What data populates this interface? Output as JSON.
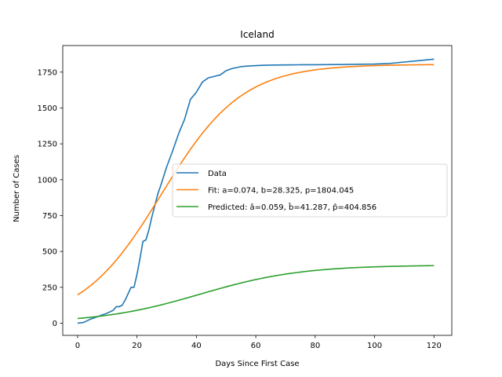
{
  "chart_data": {
    "type": "line",
    "title": "Iceland",
    "xlabel": "Days Since First Case",
    "ylabel": "Number of Cases",
    "xlim": [
      -5,
      126
    ],
    "ylim": [
      -85,
      1935
    ],
    "xticks": [
      0,
      20,
      40,
      60,
      80,
      100,
      120
    ],
    "yticks": [
      0,
      250,
      500,
      750,
      1000,
      1250,
      1500,
      1750
    ],
    "grid": false,
    "legend_position": "center-right",
    "series": [
      {
        "name": "Data",
        "color": "#1f77b4",
        "x": [
          0,
          2,
          4,
          6,
          8,
          10,
          12,
          13,
          14,
          15,
          16,
          18,
          19,
          20,
          21,
          22,
          23,
          24,
          25,
          26,
          27,
          28,
          30,
          32,
          34,
          36,
          38,
          40,
          42,
          44,
          46,
          48,
          50,
          52,
          55,
          58,
          62,
          66,
          70,
          75,
          80,
          90,
          100,
          105,
          110,
          115,
          120
        ],
        "y": [
          0,
          5,
          25,
          40,
          55,
          70,
          90,
          115,
          115,
          125,
          160,
          250,
          250,
          340,
          450,
          570,
          580,
          650,
          740,
          820,
          900,
          960,
          1090,
          1200,
          1320,
          1420,
          1560,
          1610,
          1680,
          1710,
          1720,
          1730,
          1760,
          1775,
          1788,
          1793,
          1797,
          1799,
          1800,
          1801,
          1801,
          1803,
          1806,
          1810,
          1820,
          1830,
          1840
        ]
      },
      {
        "name": "Fit: a=0.074, b=28.325, p=1804.045",
        "color": "#ff7f0e",
        "model": "logistic",
        "a": 0.074,
        "b": 28.325,
        "p": 1804.045,
        "x_range": [
          0,
          120
        ]
      },
      {
        "name": "Predicted: â=0.059, b̂=41.287, p̂=404.856",
        "color": "#2ca02c",
        "model": "logistic",
        "a": 0.059,
        "b": 41.287,
        "p": 404.856,
        "x_range": [
          0,
          120
        ]
      }
    ]
  }
}
